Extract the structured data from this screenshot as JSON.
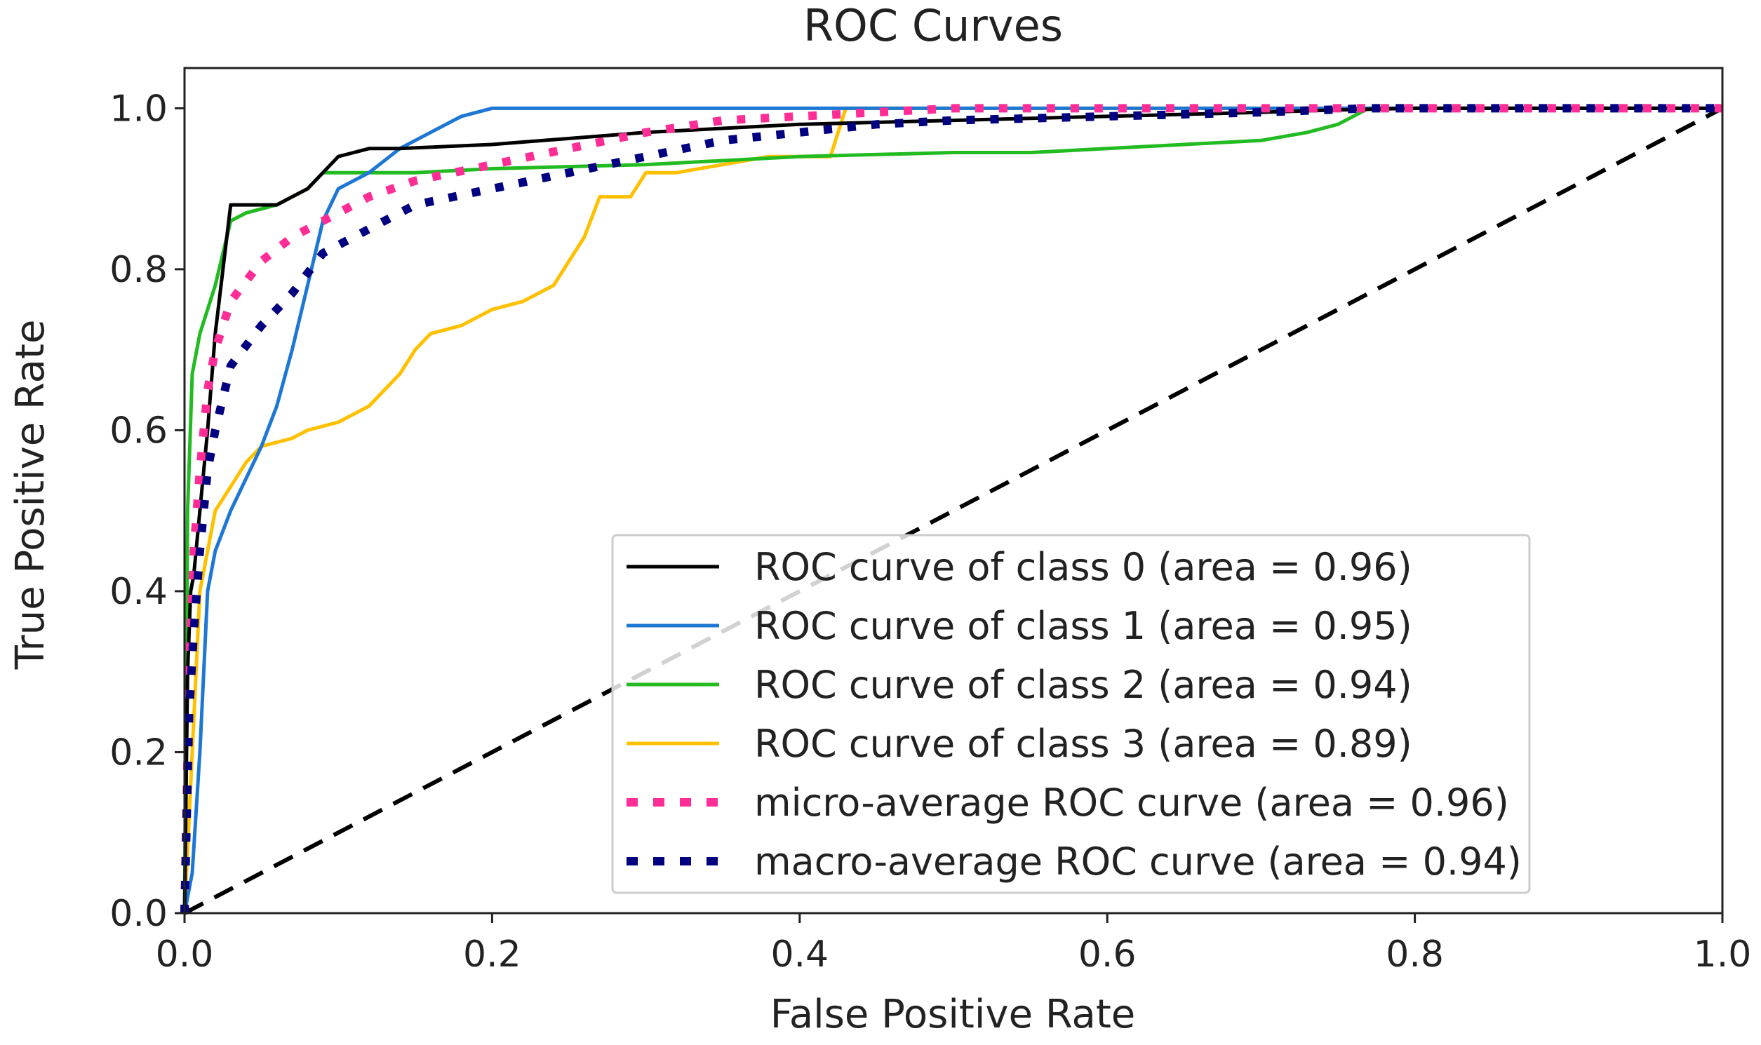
{
  "chart_data": {
    "type": "line",
    "title": "ROC Curves",
    "xlabel": "False Positive Rate",
    "ylabel": "True Positive Rate",
    "xlim": [
      0.0,
      1.0
    ],
    "ylim": [
      0.0,
      1.05
    ],
    "xticks": [
      "0.0",
      "0.2",
      "0.4",
      "0.6",
      "0.8",
      "1.0"
    ],
    "yticks": [
      "0.0",
      "0.2",
      "0.4",
      "0.6",
      "0.8",
      "1.0"
    ],
    "grid": false,
    "legend_position": "lower-right",
    "series": [
      {
        "name": "ROC curve of class 0 (area = 0.96)",
        "color": "#000000",
        "style": "solid",
        "x": [
          0,
          0.002,
          0.004,
          0.006,
          0.01,
          0.015,
          0.02,
          0.025,
          0.03,
          0.04,
          0.05,
          0.06,
          0.07,
          0.08,
          0.09,
          0.1,
          0.11,
          0.12,
          0.14,
          0.2,
          0.3,
          0.4,
          0.5,
          0.6,
          0.7,
          0.75,
          0.8,
          0.9,
          1.0
        ],
        "y": [
          0,
          0.3,
          0.4,
          0.42,
          0.5,
          0.6,
          0.72,
          0.8,
          0.88,
          0.88,
          0.88,
          0.88,
          0.89,
          0.9,
          0.92,
          0.94,
          0.945,
          0.95,
          0.95,
          0.955,
          0.97,
          0.98,
          0.985,
          0.99,
          0.995,
          0.998,
          1.0,
          1.0,
          1.0
        ]
      },
      {
        "name": "ROC curve of class 1 (area = 0.95)",
        "color": "#1f77d4",
        "style": "solid",
        "x": [
          0,
          0.005,
          0.01,
          0.015,
          0.02,
          0.03,
          0.04,
          0.05,
          0.06,
          0.07,
          0.08,
          0.09,
          0.1,
          0.12,
          0.14,
          0.16,
          0.18,
          0.2,
          0.25,
          0.3,
          0.4,
          0.5,
          0.6,
          0.7,
          0.8,
          0.9,
          1.0
        ],
        "y": [
          0,
          0.05,
          0.2,
          0.4,
          0.45,
          0.5,
          0.54,
          0.58,
          0.63,
          0.7,
          0.78,
          0.86,
          0.9,
          0.92,
          0.95,
          0.97,
          0.99,
          1.0,
          1.0,
          1.0,
          1.0,
          1.0,
          1.0,
          1.0,
          1.0,
          1.0,
          1.0
        ]
      },
      {
        "name": "ROC curve of class 2 (area = 0.94)",
        "color": "#22bb22",
        "style": "solid",
        "x": [
          0,
          0.002,
          0.005,
          0.01,
          0.015,
          0.02,
          0.025,
          0.03,
          0.04,
          0.06,
          0.08,
          0.09,
          0.1,
          0.15,
          0.2,
          0.3,
          0.4,
          0.5,
          0.55,
          0.6,
          0.65,
          0.7,
          0.73,
          0.75,
          0.77,
          0.8,
          0.9,
          1.0
        ],
        "y": [
          0,
          0.5,
          0.67,
          0.72,
          0.75,
          0.78,
          0.82,
          0.86,
          0.87,
          0.88,
          0.9,
          0.92,
          0.92,
          0.92,
          0.925,
          0.93,
          0.94,
          0.945,
          0.945,
          0.95,
          0.955,
          0.96,
          0.97,
          0.98,
          1.0,
          1.0,
          1.0,
          1.0
        ]
      },
      {
        "name": "ROC curve of class 3 (area = 0.89)",
        "color": "#ffc000",
        "style": "solid",
        "x": [
          0,
          0.005,
          0.01,
          0.015,
          0.02,
          0.03,
          0.04,
          0.05,
          0.07,
          0.08,
          0.1,
          0.12,
          0.14,
          0.15,
          0.16,
          0.18,
          0.2,
          0.22,
          0.24,
          0.25,
          0.26,
          0.27,
          0.29,
          0.3,
          0.32,
          0.35,
          0.38,
          0.42,
          0.43,
          0.45,
          0.5,
          0.6,
          0.7,
          0.8,
          0.9,
          1.0
        ],
        "y": [
          0,
          0.2,
          0.4,
          0.45,
          0.5,
          0.53,
          0.56,
          0.58,
          0.59,
          0.6,
          0.61,
          0.63,
          0.67,
          0.7,
          0.72,
          0.73,
          0.75,
          0.76,
          0.78,
          0.81,
          0.84,
          0.89,
          0.89,
          0.92,
          0.92,
          0.93,
          0.94,
          0.94,
          1.0,
          1.0,
          1.0,
          1.0,
          1.0,
          1.0,
          1.0,
          1.0
        ]
      },
      {
        "name": "micro-average ROC curve (area = 0.96)",
        "color": "#ff2d95",
        "style": "dotted",
        "x": [
          0,
          0.003,
          0.006,
          0.01,
          0.015,
          0.02,
          0.03,
          0.05,
          0.07,
          0.1,
          0.12,
          0.15,
          0.2,
          0.25,
          0.3,
          0.35,
          0.4,
          0.5,
          0.6,
          0.7,
          0.8,
          0.9,
          1.0
        ],
        "y": [
          0,
          0.3,
          0.45,
          0.55,
          0.65,
          0.7,
          0.76,
          0.81,
          0.84,
          0.87,
          0.89,
          0.91,
          0.93,
          0.95,
          0.97,
          0.985,
          0.99,
          1.0,
          1.0,
          1.0,
          1.0,
          1.0,
          1.0
        ]
      },
      {
        "name": "macro-average ROC curve (area = 0.94)",
        "color": "#000080",
        "style": "dotted",
        "x": [
          0,
          0.003,
          0.006,
          0.01,
          0.015,
          0.02,
          0.03,
          0.05,
          0.07,
          0.09,
          0.12,
          0.15,
          0.2,
          0.25,
          0.3,
          0.35,
          0.4,
          0.45,
          0.5,
          0.6,
          0.7,
          0.77,
          0.8,
          0.9,
          1.0
        ],
        "y": [
          0,
          0.25,
          0.35,
          0.45,
          0.55,
          0.6,
          0.68,
          0.73,
          0.77,
          0.82,
          0.85,
          0.88,
          0.9,
          0.92,
          0.94,
          0.96,
          0.97,
          0.98,
          0.985,
          0.99,
          0.995,
          1.0,
          1.0,
          1.0,
          1.0
        ]
      },
      {
        "color": "#000000",
        "style": "dashed",
        "x": [
          0,
          1
        ],
        "y": [
          0,
          1
        ]
      }
    ]
  }
}
